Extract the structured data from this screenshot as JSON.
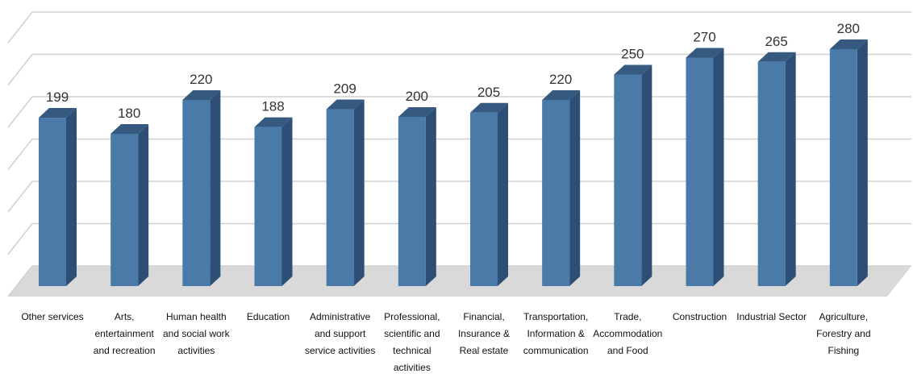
{
  "chart_data": {
    "type": "bar3d",
    "categories": [
      "Other services",
      "Arts, entertainment and recreation",
      "Human health and social work activities",
      "Education",
      "Administrative and support service activities",
      "Professional, scientific and technical activities",
      "Financial, Insurance & Real estate",
      "Transportation, Information & communication",
      "Trade, Accommodation and Food",
      "Construction",
      "Industrial Sector",
      "Agriculture, Forestry and Fishing"
    ],
    "values": [
      199,
      180,
      220,
      188,
      209,
      200,
      205,
      220,
      250,
      270,
      265,
      280
    ],
    "color": "#4a7aa8",
    "ylim": [
      0,
      300
    ],
    "yticks": [
      0,
      50,
      100,
      150,
      200,
      250,
      300
    ],
    "grid": true
  }
}
